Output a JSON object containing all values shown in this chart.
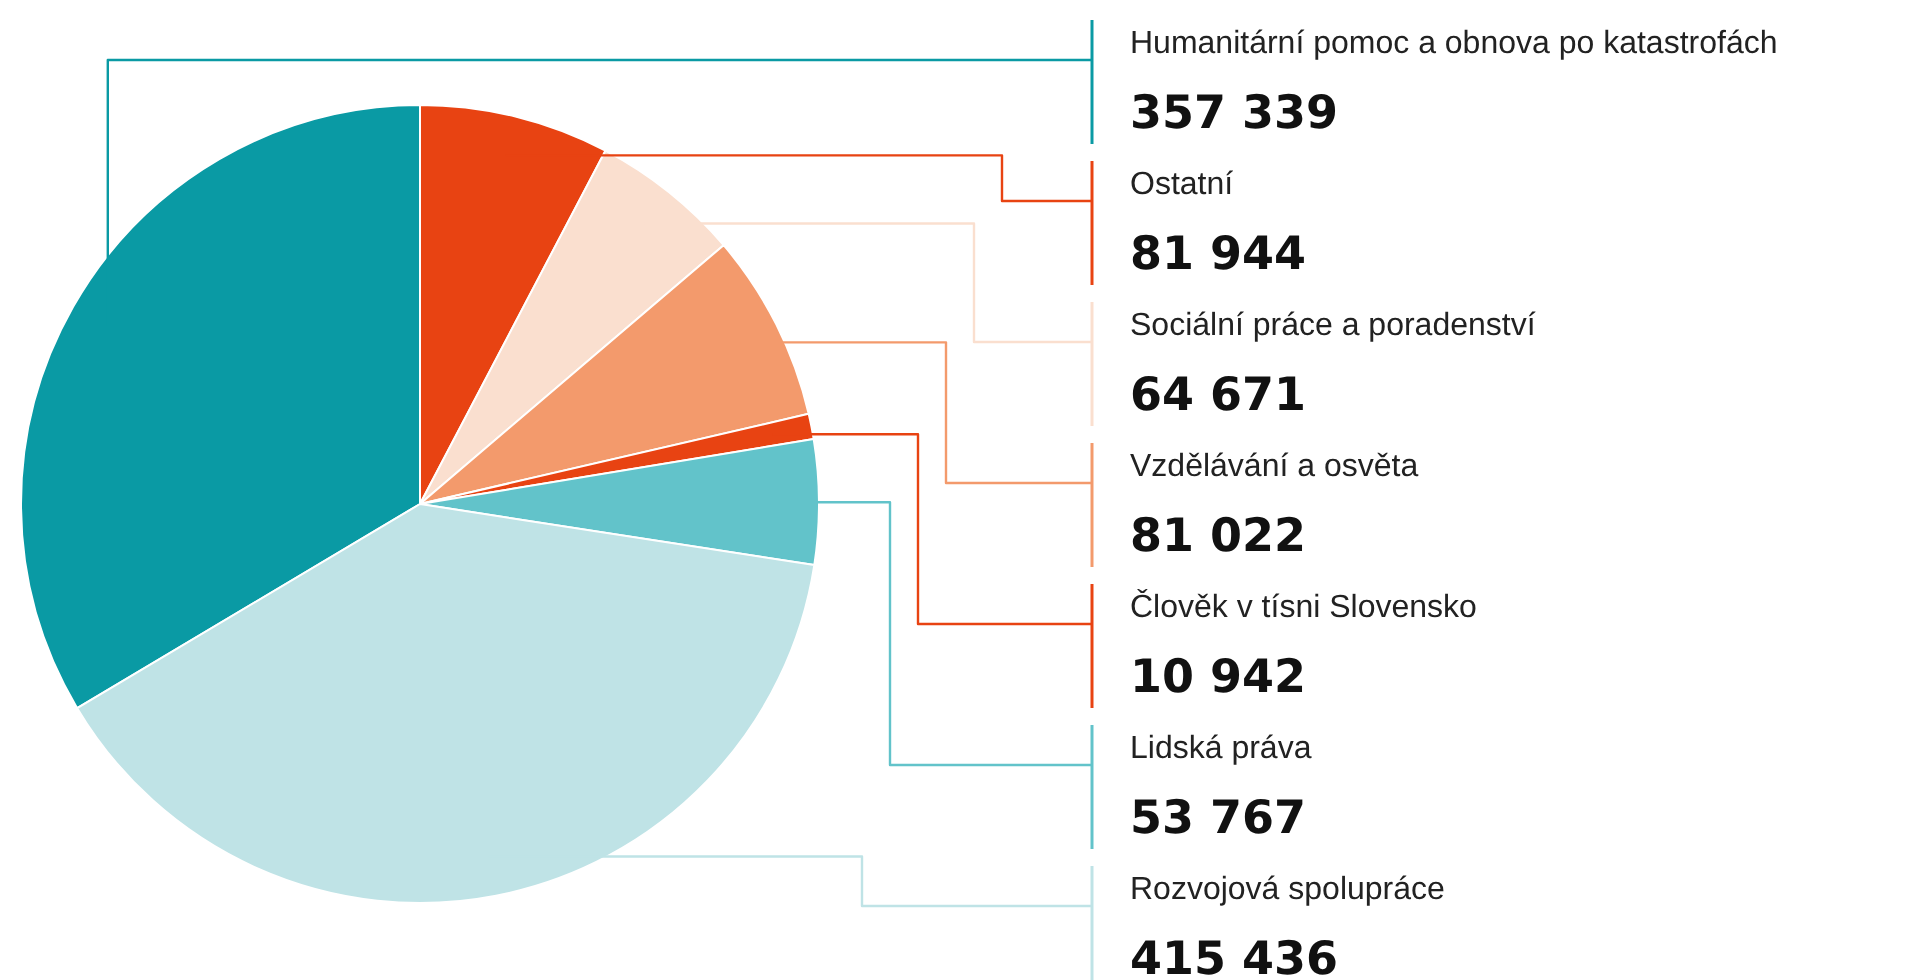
{
  "chart_data": {
    "type": "pie",
    "categories": [
      "Humanitární pomoc a obnova po katastrofách",
      "Ostatní",
      "Sociální práce a poradenství",
      "Vzdělávání a osvěta",
      "Člověk v tísni Slovensko",
      "Lidská práva",
      "Rozvojová spolupráce"
    ],
    "values": [
      357339,
      81944,
      64671,
      81022,
      10942,
      53767,
      415436
    ],
    "colors": [
      "#0a9aa4",
      "#e84312",
      "#fadfcf",
      "#f39a6c",
      "#e84312",
      "#62c3ca",
      "#bfe3e6"
    ],
    "data_labels": true,
    "legend": false
  }
}
